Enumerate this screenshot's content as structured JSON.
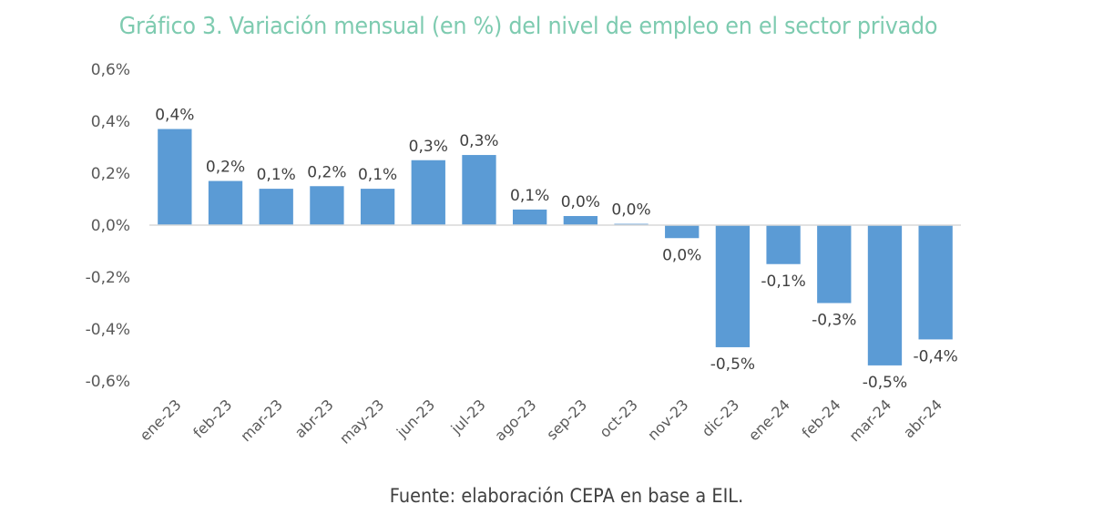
{
  "chart_data": {
    "type": "bar",
    "title": "Gráfico 3. Variación mensual (en %) del nivel de empleo en el sector privado",
    "source": "Fuente: elaboración CEPA en base a EIL.",
    "xlabel": "",
    "ylabel": "",
    "ylim": [
      -0.6,
      0.6
    ],
    "yticks": [
      0.6,
      0.4,
      0.2,
      0.0,
      -0.2,
      -0.4,
      -0.6
    ],
    "ytick_labels": [
      "0,6%",
      "0,4%",
      "0,2%",
      "0,0%",
      "-0,2%",
      "-0,4%",
      "-0,6%"
    ],
    "grid": false,
    "legend": "none",
    "bar_color": "#5b9bd5",
    "categories": [
      "ene-23",
      "feb-23",
      "mar-23",
      "abr-23",
      "may-23",
      "jun-23",
      "jul-23",
      "ago-23",
      "sep-23",
      "oct-23",
      "nov-23",
      "dic-23",
      "ene-24",
      "feb-24",
      "mar-24",
      "abr-24"
    ],
    "values": [
      0.37,
      0.17,
      0.14,
      0.15,
      0.14,
      0.25,
      0.27,
      0.06,
      0.035,
      0.005,
      -0.05,
      -0.47,
      -0.15,
      -0.3,
      -0.54,
      -0.44
    ],
    "data_labels": [
      "0,4%",
      "0,2%",
      "0,1%",
      "0,2%",
      "0,1%",
      "0,3%",
      "0,3%",
      "0,1%",
      "0,0%",
      "0,0%",
      "0,0%",
      "-0,5%",
      "-0,1%",
      "-0,3%",
      "-0,5%",
      "-0,4%"
    ]
  }
}
